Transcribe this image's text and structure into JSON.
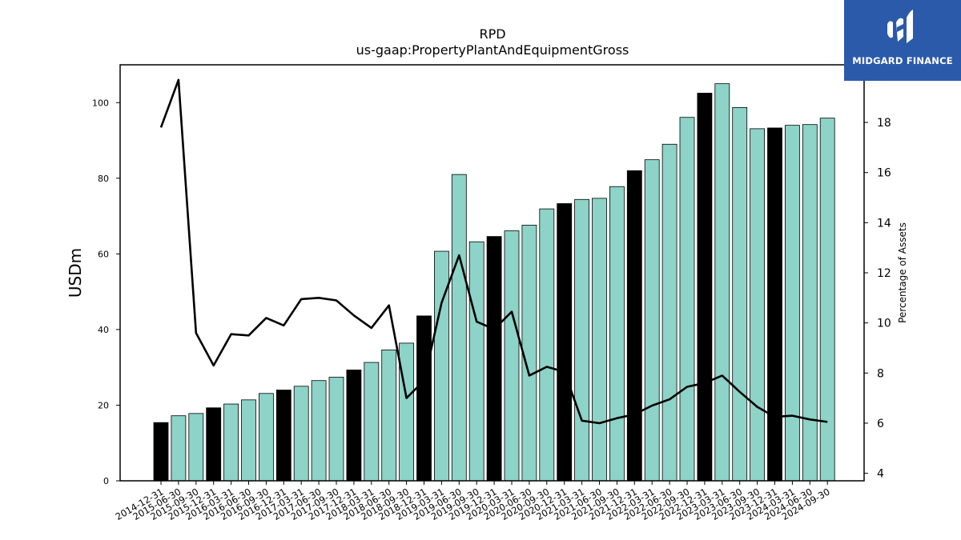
{
  "chart_data": {
    "type": "bar",
    "title": "RPD",
    "subtitle": "us-gaap:PropertyPlantAndEquipmentGross",
    "ylabel": "USDm",
    "y2label": "Percentage of Assets",
    "ylim": [
      0,
      110
    ],
    "y2lim": [
      3.7,
      20.3
    ],
    "yticks": [
      0,
      20,
      40,
      60,
      80,
      100
    ],
    "y2ticks": [
      4,
      6,
      8,
      10,
      12,
      14,
      16,
      18
    ],
    "categories": [
      "2014-12-31",
      "2015-06-30",
      "2015-09-30",
      "2015-12-31",
      "2016-03-31",
      "2016-06-30",
      "2016-09-30",
      "2016-12-31",
      "2017-03-31",
      "2017-06-30",
      "2017-09-30",
      "2017-12-31",
      "2018-03-31",
      "2018-06-30",
      "2018-09-30",
      "2018-12-31",
      "2019-03-31",
      "2019-06-30",
      "2019-09-30",
      "2019-12-31",
      "2020-03-31",
      "2020-06-30",
      "2020-09-30",
      "2020-12-31",
      "2021-03-31",
      "2021-06-30",
      "2021-09-30",
      "2021-12-31",
      "2022-03-31",
      "2022-06-30",
      "2022-09-30",
      "2022-12-31",
      "2023-03-31",
      "2023-06-30",
      "2023-09-30",
      "2023-12-31",
      "2024-03-31",
      "2024-06-30",
      "2024-09-30"
    ],
    "series": [
      {
        "kind": "bar",
        "values": [
          15.4,
          17.2,
          17.8,
          19.3,
          20.3,
          21.4,
          23.1,
          24.0,
          25.0,
          26.5,
          27.4,
          29.3,
          31.3,
          34.6,
          36.4,
          43.6,
          60.7,
          81.0,
          63.2,
          64.6,
          66.1,
          67.6,
          71.9,
          73.3,
          74.4,
          74.7,
          77.8,
          82.0,
          84.9,
          89.0,
          96.1,
          102.5,
          105.0,
          98.7,
          93.1,
          93.3,
          94.0,
          94.2,
          95.9
        ]
      },
      {
        "kind": "line",
        "axis": "right",
        "values": [
          17.8,
          19.7,
          9.6,
          8.3,
          9.55,
          9.5,
          10.2,
          9.9,
          10.95,
          11.0,
          10.9,
          10.3,
          9.8,
          10.7,
          7.0,
          7.7,
          10.8,
          12.7,
          10.05,
          9.75,
          10.45,
          7.9,
          8.25,
          8.05,
          6.1,
          6.0,
          6.2,
          6.35,
          6.7,
          6.95,
          7.45,
          7.6,
          7.9,
          7.25,
          6.65,
          6.25,
          6.3,
          6.15,
          6.05
        ]
      }
    ],
    "highlight_indices": [
      0,
      3,
      7,
      11,
      15,
      19,
      23,
      27,
      31,
      35
    ],
    "colors": {
      "bar": "#8dd3c7",
      "bar_highlight": "#000000",
      "line": "#000000",
      "edge": "#000000"
    }
  },
  "logo": {
    "text": "MIDGARD FINANCE",
    "background": "#2b5aab"
  }
}
